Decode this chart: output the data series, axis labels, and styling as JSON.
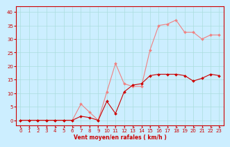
{
  "x": [
    0,
    1,
    2,
    3,
    4,
    5,
    6,
    7,
    8,
    9,
    10,
    11,
    12,
    13,
    14,
    15,
    16,
    17,
    18,
    19,
    20,
    21,
    22,
    23
  ],
  "y_rafales": [
    0,
    0,
    0,
    0,
    0,
    0,
    0,
    6,
    3,
    0,
    10.5,
    21,
    13.5,
    12.5,
    12.5,
    26,
    35,
    35.5,
    37,
    32.5,
    32.5,
    30,
    31.5,
    31.5
  ],
  "y_moyen": [
    0,
    0,
    0,
    0,
    0,
    0,
    0,
    1.5,
    1,
    0,
    7,
    2.5,
    10.5,
    13,
    13.5,
    16.5,
    17,
    17,
    17,
    16.5,
    14.5,
    15.5,
    17,
    16.5
  ],
  "color_rafales": "#f08080",
  "color_moyen": "#cc0000",
  "bg_color": "#cceeff",
  "grid_color": "#aadddd",
  "xlabel": "Vent moyen/en rafales ( km/h )",
  "ylim": [
    -2,
    42
  ],
  "xlim": [
    -0.5,
    23.5
  ],
  "yticks": [
    0,
    5,
    10,
    15,
    20,
    25,
    30,
    35,
    40
  ],
  "xticks": [
    0,
    1,
    2,
    3,
    4,
    5,
    6,
    7,
    8,
    9,
    10,
    11,
    12,
    13,
    14,
    15,
    16,
    17,
    18,
    19,
    20,
    21,
    22,
    23
  ]
}
